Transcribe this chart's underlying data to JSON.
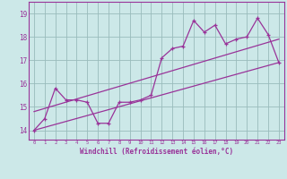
{
  "title": "",
  "xlabel": "Windchill (Refroidissement éolien,°C)",
  "ylabel": "",
  "background_color": "#cce8e8",
  "line_color": "#993399",
  "grid_color": "#99bbbb",
  "x_ticks": [
    0,
    1,
    2,
    3,
    4,
    5,
    6,
    7,
    8,
    9,
    10,
    11,
    12,
    13,
    14,
    15,
    16,
    17,
    18,
    19,
    20,
    21,
    22,
    23
  ],
  "y_ticks": [
    14,
    15,
    16,
    17,
    18,
    19
  ],
  "ylim": [
    13.6,
    19.5
  ],
  "xlim": [
    -0.5,
    23.5
  ],
  "series1_x": [
    0,
    1,
    2,
    3,
    4,
    5,
    6,
    7,
    8,
    9,
    10,
    11,
    12,
    13,
    14,
    15,
    16,
    17,
    18,
    19,
    20,
    21,
    22,
    23
  ],
  "series1_y": [
    14.0,
    14.5,
    15.8,
    15.3,
    15.3,
    15.2,
    14.3,
    14.3,
    15.2,
    15.2,
    15.3,
    15.5,
    17.1,
    17.5,
    17.6,
    18.7,
    18.2,
    18.5,
    17.7,
    17.9,
    18.0,
    18.8,
    18.1,
    16.9
  ],
  "series2_x": [
    0,
    23
  ],
  "series2_y": [
    14.0,
    16.9
  ],
  "series3_x": [
    0,
    23
  ],
  "series3_y": [
    14.8,
    17.9
  ]
}
